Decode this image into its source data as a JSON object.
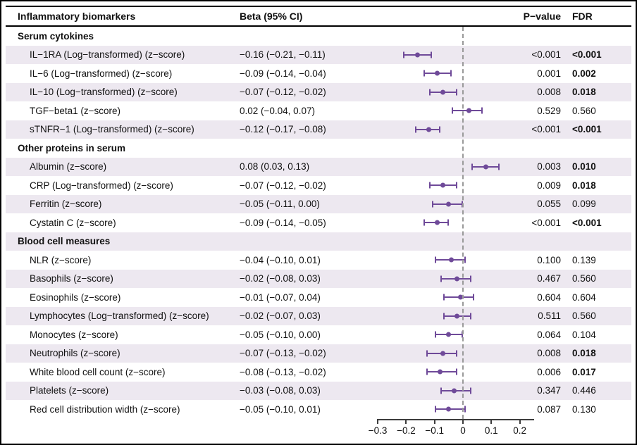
{
  "header": {
    "biomarker": "Inflammatory biomarkers",
    "beta": "Beta (95% CI)",
    "p": "P−value",
    "fdr": "FDR"
  },
  "colors": {
    "marker_purple": "#6f4a99",
    "row_shade": "#ede8f0",
    "zero_line_gray": "#9a9a9a",
    "axis_color": "#3d3d3d"
  },
  "chart_data": {
    "type": "scatter",
    "subtype": "forest-plot",
    "xlabel": "",
    "xlim": [
      -0.35,
      0.3
    ],
    "reference_line_x": 0,
    "axis_ticks": [
      {
        "value": -0.3,
        "label": "−0.3"
      },
      {
        "value": -0.2,
        "label": "−0.2"
      },
      {
        "value": -0.1,
        "label": "−0.1"
      },
      {
        "value": 0,
        "label": "0"
      },
      {
        "value": 0.1,
        "label": "0.1"
      },
      {
        "value": 0.2,
        "label": "0.2"
      }
    ],
    "rows": [
      {
        "type": "section",
        "label": "Serum cytokines",
        "shaded": false
      },
      {
        "type": "item",
        "label": "IL−1RA (Log−transformed) (z−score)",
        "beta_ci": "−0.16 (−0.21, −0.11)",
        "beta": -0.16,
        "lo": -0.21,
        "hi": -0.11,
        "p": "<0.001",
        "fdr": "<0.001",
        "fdr_bold": true,
        "shaded": true
      },
      {
        "type": "item",
        "label": "IL−6 (Log−transformed) (z−score)",
        "beta_ci": "−0.09 (−0.14, −0.04)",
        "beta": -0.09,
        "lo": -0.14,
        "hi": -0.04,
        "p": "0.001",
        "fdr": "0.002",
        "fdr_bold": true,
        "shaded": false
      },
      {
        "type": "item",
        "label": "IL−10 (Log−transformed) (z−score)",
        "beta_ci": "−0.07 (−0.12, −0.02)",
        "beta": -0.07,
        "lo": -0.12,
        "hi": -0.02,
        "p": "0.008",
        "fdr": "0.018",
        "fdr_bold": true,
        "shaded": true
      },
      {
        "type": "item",
        "label": "TGF−beta1 (z−score)",
        "beta_ci": "0.02 (−0.04, 0.07)",
        "beta": 0.02,
        "lo": -0.04,
        "hi": 0.07,
        "p": "0.529",
        "fdr": "0.560",
        "fdr_bold": false,
        "shaded": false
      },
      {
        "type": "item",
        "label": "sTNFR−1 (Log−transformed) (z−score)",
        "beta_ci": "−0.12 (−0.17, −0.08)",
        "beta": -0.12,
        "lo": -0.17,
        "hi": -0.08,
        "p": "<0.001",
        "fdr": "<0.001",
        "fdr_bold": true,
        "shaded": true
      },
      {
        "type": "section",
        "label": "Other proteins in serum",
        "shaded": false
      },
      {
        "type": "item",
        "label": "Albumin (z−score)",
        "beta_ci": "0.08 (0.03, 0.13)",
        "beta": 0.08,
        "lo": 0.03,
        "hi": 0.13,
        "p": "0.003",
        "fdr": "0.010",
        "fdr_bold": true,
        "shaded": true
      },
      {
        "type": "item",
        "label": "CRP (Log−transformed) (z−score)",
        "beta_ci": "−0.07 (−0.12, −0.02)",
        "beta": -0.07,
        "lo": -0.12,
        "hi": -0.02,
        "p": "0.009",
        "fdr": "0.018",
        "fdr_bold": true,
        "shaded": false
      },
      {
        "type": "item",
        "label": "Ferritin (z−score)",
        "beta_ci": "−0.05 (−0.11, 0.00)",
        "beta": -0.05,
        "lo": -0.11,
        "hi": 0.0,
        "p": "0.055",
        "fdr": "0.099",
        "fdr_bold": false,
        "shaded": true
      },
      {
        "type": "item",
        "label": "Cystatin C (z−score)",
        "beta_ci": "−0.09 (−0.14, −0.05)",
        "beta": -0.09,
        "lo": -0.14,
        "hi": -0.05,
        "p": "<0.001",
        "fdr": "<0.001",
        "fdr_bold": true,
        "shaded": false
      },
      {
        "type": "section",
        "label": "Blood cell measures",
        "shaded": true
      },
      {
        "type": "item",
        "label": "NLR (z−score)",
        "beta_ci": "−0.04 (−0.10, 0.01)",
        "beta": -0.04,
        "lo": -0.1,
        "hi": 0.01,
        "p": "0.100",
        "fdr": "0.139",
        "fdr_bold": false,
        "shaded": false
      },
      {
        "type": "item",
        "label": "Basophils (z−score)",
        "beta_ci": "−0.02 (−0.08, 0.03)",
        "beta": -0.02,
        "lo": -0.08,
        "hi": 0.03,
        "p": "0.467",
        "fdr": "0.560",
        "fdr_bold": false,
        "shaded": true
      },
      {
        "type": "item",
        "label": "Eosinophils (z−score)",
        "beta_ci": "−0.01 (−0.07, 0.04)",
        "beta": -0.01,
        "lo": -0.07,
        "hi": 0.04,
        "p": "0.604",
        "fdr": "0.604",
        "fdr_bold": false,
        "shaded": false
      },
      {
        "type": "item",
        "label": "Lymphocytes (Log−transformed) (z−score)",
        "beta_ci": "−0.02 (−0.07, 0.03)",
        "beta": -0.02,
        "lo": -0.07,
        "hi": 0.03,
        "p": "0.511",
        "fdr": "0.560",
        "fdr_bold": false,
        "shaded": true
      },
      {
        "type": "item",
        "label": "Monocytes (z−score)",
        "beta_ci": "−0.05 (−0.10, 0.00)",
        "beta": -0.05,
        "lo": -0.1,
        "hi": 0.0,
        "p": "0.064",
        "fdr": "0.104",
        "fdr_bold": false,
        "shaded": false
      },
      {
        "type": "item",
        "label": "Neutrophils (z−score)",
        "beta_ci": "−0.07 (−0.13, −0.02)",
        "beta": -0.07,
        "lo": -0.13,
        "hi": -0.02,
        "p": "0.008",
        "fdr": "0.018",
        "fdr_bold": true,
        "shaded": true
      },
      {
        "type": "item",
        "label": "White blood cell count (z−score)",
        "beta_ci": "−0.08 (−0.13, −0.02)",
        "beta": -0.08,
        "lo": -0.13,
        "hi": -0.02,
        "p": "0.006",
        "fdr": "0.017",
        "fdr_bold": true,
        "shaded": false
      },
      {
        "type": "item",
        "label": "Platelets (z−score)",
        "beta_ci": "−0.03 (−0.08, 0.03)",
        "beta": -0.03,
        "lo": -0.08,
        "hi": 0.03,
        "p": "0.347",
        "fdr": "0.446",
        "fdr_bold": false,
        "shaded": true
      },
      {
        "type": "item",
        "label": "Red cell distribution width (z−score)",
        "beta_ci": "−0.05 (−0.10, 0.01)",
        "beta": -0.05,
        "lo": -0.1,
        "hi": 0.01,
        "p": "0.087",
        "fdr": "0.130",
        "fdr_bold": false,
        "shaded": false
      }
    ]
  }
}
